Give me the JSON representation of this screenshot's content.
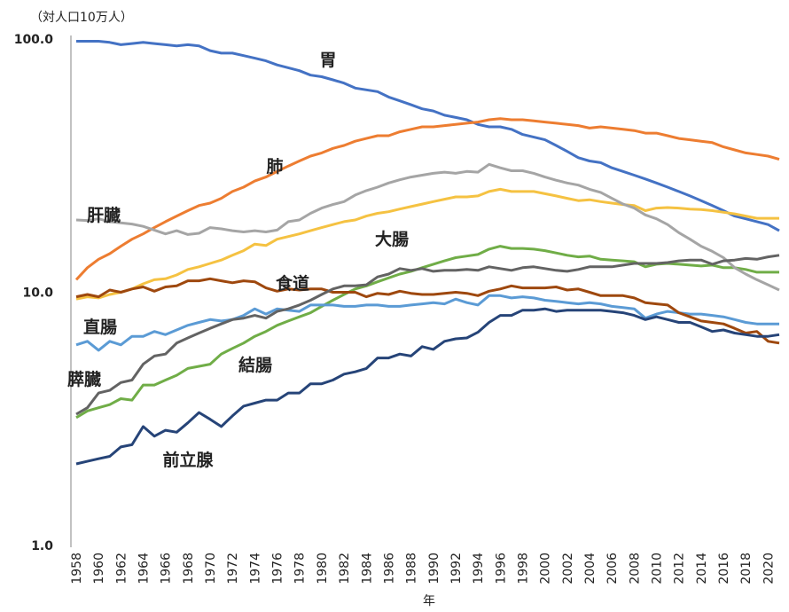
{
  "chart_data": {
    "type": "line",
    "y_label": "（対人口10万人）",
    "x_label": "年",
    "log_y": true,
    "ylim": [
      1,
      100
    ],
    "yticks": [
      {
        "value": 1,
        "label": "1.0"
      },
      {
        "value": 10,
        "label": "10.0"
      },
      {
        "value": 100,
        "label": "100.0"
      }
    ],
    "xlim": [
      1958,
      2021
    ],
    "xticks": [
      1958,
      1960,
      1962,
      1964,
      1966,
      1968,
      1970,
      1972,
      1974,
      1976,
      1978,
      1980,
      1982,
      1984,
      1986,
      1988,
      1990,
      1992,
      1994,
      1996,
      1998,
      2000,
      2002,
      2004,
      2006,
      2008,
      2010,
      2012,
      2014,
      2016,
      2018,
      2020
    ],
    "x": [
      1958,
      1959,
      1960,
      1961,
      1962,
      1963,
      1964,
      1965,
      1966,
      1967,
      1968,
      1969,
      1970,
      1971,
      1972,
      1973,
      1974,
      1975,
      1976,
      1977,
      1978,
      1979,
      1980,
      1981,
      1982,
      1983,
      1984,
      1985,
      1986,
      1987,
      1988,
      1989,
      1990,
      1991,
      1992,
      1993,
      1994,
      1995,
      1996,
      1997,
      1998,
      1999,
      2000,
      2001,
      2002,
      2003,
      2004,
      2005,
      2006,
      2007,
      2008,
      2009,
      2010,
      2011,
      2012,
      2013,
      2014,
      2015,
      2016,
      2017,
      2018,
      2019,
      2020,
      2021
    ],
    "series": [
      {
        "name": "胃",
        "color": "#4472c4",
        "values": [
          98,
          98,
          98,
          97,
          95,
          96,
          97,
          96,
          95,
          94,
          95,
          94,
          90,
          88,
          88,
          86,
          84,
          82,
          79,
          77,
          75,
          72,
          71,
          69,
          67,
          64,
          63,
          62,
          59,
          57,
          55,
          53,
          52,
          50,
          49,
          48,
          46,
          45,
          45,
          44,
          42,
          41,
          40,
          38,
          36,
          34,
          33,
          32.5,
          31,
          30,
          29,
          28,
          27,
          26,
          25,
          24,
          23,
          22,
          21,
          20,
          19.5,
          19,
          18.5,
          17.5
        ]
      },
      {
        "name": "肺",
        "color": "#ed7d31",
        "values": [
          11.2,
          12.5,
          13.5,
          14.2,
          15.2,
          16.2,
          17,
          18,
          19,
          20,
          21,
          22,
          22.5,
          23.5,
          25,
          26,
          27.5,
          28.5,
          30,
          31.5,
          33,
          34.5,
          35.5,
          37,
          38,
          39.5,
          40.5,
          41.5,
          41.5,
          43,
          44,
          45,
          45,
          45.5,
          46,
          46.5,
          47,
          48,
          48.5,
          48,
          48,
          47.5,
          47,
          46.5,
          46,
          45.5,
          44.5,
          45,
          44.5,
          44,
          43.5,
          42.5,
          42.5,
          41.5,
          40.5,
          40,
          39.5,
          39,
          37.5,
          36.5,
          35.5,
          35,
          34.5,
          33.5
        ]
      },
      {
        "name": "大腸",
        "color": "#f5c242",
        "values": [
          9.4,
          9.6,
          9.5,
          9.8,
          10,
          10.3,
          10.8,
          11.2,
          11.3,
          11.7,
          12.3,
          12.6,
          13,
          13.4,
          14,
          14.6,
          15.5,
          15.3,
          16.2,
          16.6,
          17,
          17.5,
          18,
          18.5,
          19,
          19.3,
          20,
          20.5,
          20.8,
          21.3,
          21.8,
          22.3,
          22.8,
          23.3,
          23.8,
          23.8,
          24,
          25,
          25.5,
          25,
          25,
          25,
          24.5,
          24,
          23.5,
          23,
          23.2,
          22.8,
          22.5,
          22.2,
          22,
          21,
          21.5,
          21.6,
          21.5,
          21.3,
          21.2,
          21,
          20.7,
          20.4,
          20,
          19.6,
          19.6,
          19.6
        ]
      },
      {
        "name": "結腸",
        "color": "#70ad47",
        "values": [
          3.2,
          3.4,
          3.5,
          3.6,
          3.8,
          3.75,
          4.3,
          4.3,
          4.5,
          4.7,
          5.0,
          5.1,
          5.2,
          5.7,
          6.0,
          6.3,
          6.7,
          7.0,
          7.4,
          7.7,
          8.0,
          8.3,
          8.8,
          9.3,
          9.8,
          10.3,
          10.6,
          11,
          11.4,
          11.8,
          12.1,
          12.5,
          12.9,
          13.3,
          13.7,
          13.9,
          14.1,
          14.8,
          15.2,
          14.9,
          14.9,
          14.8,
          14.6,
          14.3,
          14,
          13.8,
          13.9,
          13.5,
          13.4,
          13.3,
          13.2,
          12.6,
          12.9,
          13,
          12.9,
          12.8,
          12.7,
          12.8,
          12.5,
          12.5,
          12.3,
          12,
          12,
          12
        ]
      },
      {
        "name": "直腸",
        "color": "#5b9bd5",
        "values": [
          6.2,
          6.4,
          5.9,
          6.4,
          6.2,
          6.7,
          6.7,
          7.0,
          6.8,
          7.1,
          7.4,
          7.6,
          7.8,
          7.7,
          7.8,
          8.1,
          8.6,
          8.2,
          8.6,
          8.5,
          8.4,
          8.9,
          8.9,
          8.9,
          8.8,
          8.8,
          8.9,
          8.9,
          8.8,
          8.8,
          8.9,
          9.0,
          9.1,
          9.0,
          9.4,
          9.1,
          8.9,
          9.7,
          9.7,
          9.5,
          9.6,
          9.5,
          9.3,
          9.2,
          9.1,
          9.0,
          9.1,
          9.0,
          8.8,
          8.7,
          8.6,
          7.9,
          8.2,
          8.4,
          8.3,
          8.2,
          8.2,
          8.1,
          8.0,
          7.8,
          7.6,
          7.5,
          7.5,
          7.5
        ]
      },
      {
        "name": "肝臓",
        "color": "#a5a5a5",
        "values": [
          19.3,
          19.2,
          19.5,
          19,
          18.8,
          18.6,
          18.2,
          17.6,
          17,
          17.5,
          16.9,
          17.1,
          18,
          17.8,
          17.5,
          17.3,
          17.5,
          17.3,
          17.6,
          19,
          19.3,
          20.5,
          21.5,
          22.2,
          22.8,
          24.2,
          25.2,
          26,
          27,
          27.8,
          28.5,
          29,
          29.5,
          29.8,
          29.5,
          30,
          29.8,
          32,
          31,
          30.2,
          30.2,
          29.5,
          28.5,
          27.7,
          27,
          26.5,
          25.5,
          24.8,
          23.5,
          22.3,
          21.5,
          20.2,
          19.5,
          18.5,
          17.2,
          16.2,
          15.2,
          14.5,
          13.7,
          12.5,
          11.8,
          11.2,
          10.7,
          10.2
        ]
      },
      {
        "name": "食道",
        "color": "#9e480e",
        "values": [
          9.6,
          9.8,
          9.6,
          10.2,
          10.0,
          10.3,
          10.5,
          10.1,
          10.5,
          10.6,
          11.1,
          11.1,
          11.3,
          11.1,
          10.9,
          11.1,
          11.0,
          10.4,
          10.1,
          10.3,
          10.2,
          10.3,
          10.3,
          10.0,
          10.0,
          10.0,
          9.6,
          9.9,
          9.8,
          10.1,
          9.9,
          9.8,
          9.8,
          9.9,
          10.0,
          9.9,
          9.7,
          10.1,
          10.3,
          10.6,
          10.4,
          10.4,
          10.4,
          10.5,
          10.2,
          10.3,
          10.0,
          9.7,
          9.7,
          9.7,
          9.5,
          9.1,
          9.0,
          8.9,
          8.3,
          8.0,
          7.7,
          7.6,
          7.5,
          7.2,
          6.9,
          7.0,
          6.4,
          6.3
        ]
      },
      {
        "name": "膵臓",
        "color": "#636363",
        "values": [
          3.3,
          3.5,
          4.0,
          4.1,
          4.4,
          4.5,
          5.2,
          5.6,
          5.7,
          6.3,
          6.6,
          6.9,
          7.2,
          7.5,
          7.8,
          7.9,
          8.1,
          7.9,
          8.4,
          8.6,
          8.9,
          9.3,
          9.8,
          10.3,
          10.6,
          10.6,
          10.7,
          11.5,
          11.8,
          12.4,
          12.2,
          12.4,
          12.1,
          12.2,
          12.2,
          12.3,
          12.2,
          12.6,
          12.4,
          12.2,
          12.5,
          12.6,
          12.4,
          12.2,
          12.1,
          12.3,
          12.6,
          12.6,
          12.6,
          12.8,
          13.0,
          13.0,
          13.0,
          13.1,
          13.3,
          13.4,
          13.4,
          12.9,
          13.3,
          13.4,
          13.6,
          13.5,
          13.8,
          14.0
        ]
      },
      {
        "name": "前立腺",
        "color": "#264478",
        "values": [
          2.1,
          2.15,
          2.2,
          2.25,
          2.45,
          2.5,
          2.95,
          2.7,
          2.85,
          2.8,
          3.05,
          3.35,
          3.15,
          2.95,
          3.25,
          3.55,
          3.65,
          3.75,
          3.75,
          4.0,
          4.0,
          4.35,
          4.35,
          4.5,
          4.75,
          4.85,
          5.0,
          5.5,
          5.5,
          5.7,
          5.6,
          6.1,
          5.95,
          6.4,
          6.55,
          6.6,
          6.95,
          7.6,
          8.1,
          8.1,
          8.5,
          8.5,
          8.6,
          8.4,
          8.5,
          8.5,
          8.5,
          8.5,
          8.4,
          8.3,
          8.1,
          7.8,
          8.0,
          7.8,
          7.6,
          7.6,
          7.3,
          7.0,
          7.1,
          6.9,
          6.8,
          6.7,
          6.7,
          6.8
        ]
      }
    ]
  }
}
